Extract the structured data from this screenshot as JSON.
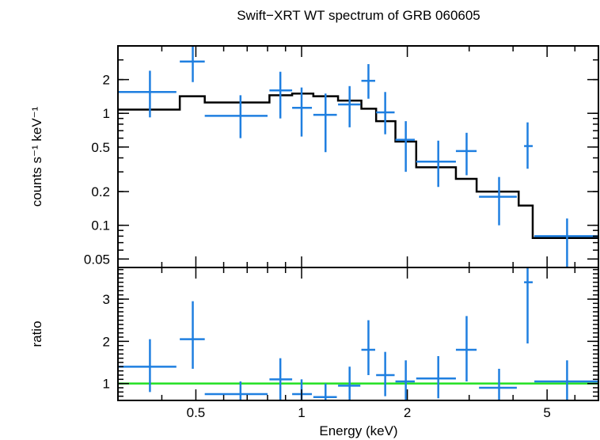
{
  "chart_data": [
    {
      "type": "scatter",
      "panel": "spectrum",
      "title": "Swift−XRT WT spectrum of GRB 060605",
      "xlabel": "",
      "ylabel": "counts s⁻¹ keV⁻¹",
      "xscale": "log",
      "yscale": "log",
      "xlim": [
        0.3,
        7.0
      ],
      "ylim": [
        0.042,
        4.0
      ],
      "y_ticks": [
        {
          "value": 0.05,
          "label": "0.05"
        },
        {
          "value": 0.1,
          "label": "0.1"
        },
        {
          "value": 0.2,
          "label": "0.2"
        },
        {
          "value": 0.5,
          "label": "0.5"
        },
        {
          "value": 1,
          "label": "1"
        },
        {
          "value": 2,
          "label": "2"
        }
      ],
      "data_color": "#1f7fe0",
      "model_color": "#000000",
      "data": [
        {
          "x": 0.37,
          "xlo": 0.3,
          "xhi": 0.44,
          "y": 1.55,
          "ylo": 0.92,
          "yhi": 2.4
        },
        {
          "x": 0.49,
          "xlo": 0.45,
          "xhi": 0.53,
          "y": 2.9,
          "ylo": 1.9,
          "yhi": 4.0
        },
        {
          "x": 0.67,
          "xlo": 0.53,
          "xhi": 0.8,
          "y": 0.95,
          "ylo": 0.6,
          "yhi": 1.45
        },
        {
          "x": 0.87,
          "xlo": 0.81,
          "xhi": 0.94,
          "y": 1.6,
          "ylo": 0.9,
          "yhi": 2.35
        },
        {
          "x": 1.0,
          "xlo": 0.94,
          "xhi": 1.07,
          "y": 1.12,
          "ylo": 0.62,
          "yhi": 1.7
        },
        {
          "x": 1.17,
          "xlo": 1.08,
          "xhi": 1.26,
          "y": 0.97,
          "ylo": 0.45,
          "yhi": 1.5
        },
        {
          "x": 1.37,
          "xlo": 1.27,
          "xhi": 1.47,
          "y": 1.2,
          "ylo": 0.75,
          "yhi": 1.75
        },
        {
          "x": 1.55,
          "xlo": 1.48,
          "xhi": 1.62,
          "y": 1.95,
          "ylo": 1.35,
          "yhi": 2.75
        },
        {
          "x": 1.73,
          "xlo": 1.63,
          "xhi": 1.84,
          "y": 1.02,
          "ylo": 0.65,
          "yhi": 1.55
        },
        {
          "x": 1.98,
          "xlo": 1.85,
          "xhi": 2.1,
          "y": 0.58,
          "ylo": 0.3,
          "yhi": 0.85
        },
        {
          "x": 2.45,
          "xlo": 2.12,
          "xhi": 2.75,
          "y": 0.37,
          "ylo": 0.22,
          "yhi": 0.57
        },
        {
          "x": 2.95,
          "xlo": 2.75,
          "xhi": 3.15,
          "y": 0.46,
          "ylo": 0.28,
          "yhi": 0.67
        },
        {
          "x": 3.65,
          "xlo": 3.2,
          "xhi": 4.1,
          "y": 0.18,
          "ylo": 0.1,
          "yhi": 0.27
        },
        {
          "x": 4.4,
          "xlo": 4.3,
          "xhi": 4.55,
          "y": 0.51,
          "ylo": 0.32,
          "yhi": 0.83
        },
        {
          "x": 5.7,
          "xlo": 4.6,
          "xhi": 7.0,
          "y": 0.08,
          "ylo": 0.042,
          "yhi": 0.115
        }
      ],
      "model_steps": [
        {
          "xlo": 0.3,
          "xhi": 0.45,
          "y": 1.08
        },
        {
          "xlo": 0.45,
          "xhi": 0.53,
          "y": 1.42
        },
        {
          "xlo": 0.53,
          "xhi": 0.81,
          "y": 1.25
        },
        {
          "xlo": 0.81,
          "xhi": 0.94,
          "y": 1.45
        },
        {
          "xlo": 0.94,
          "xhi": 1.08,
          "y": 1.5
        },
        {
          "xlo": 1.08,
          "xhi": 1.27,
          "y": 1.42
        },
        {
          "xlo": 1.27,
          "xhi": 1.48,
          "y": 1.3
        },
        {
          "xlo": 1.48,
          "xhi": 1.63,
          "y": 1.1
        },
        {
          "xlo": 1.63,
          "xhi": 1.85,
          "y": 0.85
        },
        {
          "xlo": 1.85,
          "xhi": 2.12,
          "y": 0.56
        },
        {
          "xlo": 2.12,
          "xhi": 2.75,
          "y": 0.33
        },
        {
          "xlo": 2.75,
          "xhi": 3.15,
          "y": 0.26
        },
        {
          "xlo": 3.15,
          "xhi": 4.15,
          "y": 0.2
        },
        {
          "xlo": 4.15,
          "xhi": 4.55,
          "y": 0.15
        },
        {
          "xlo": 4.55,
          "xhi": 7.0,
          "y": 0.077
        }
      ]
    },
    {
      "type": "scatter",
      "panel": "ratio",
      "xlabel": "Energy (keV)",
      "ylabel": "ratio",
      "xscale": "log",
      "yscale": "linear",
      "xlim": [
        0.3,
        7.0
      ],
      "ylim": [
        0.6,
        3.75
      ],
      "x_ticks": [
        {
          "value": 0.5,
          "label": "0.5"
        },
        {
          "value": 1,
          "label": "1"
        },
        {
          "value": 2,
          "label": "2"
        },
        {
          "value": 5,
          "label": "5"
        }
      ],
      "y_ticks": [
        {
          "value": 1,
          "label": "1"
        },
        {
          "value": 2,
          "label": "2"
        },
        {
          "value": 3,
          "label": "3"
        }
      ],
      "reference_line": {
        "y": 1,
        "color": "#22e022"
      },
      "data_color": "#1f7fe0",
      "data": [
        {
          "x": 0.37,
          "xlo": 0.3,
          "xhi": 0.44,
          "y": 1.4,
          "ylo": 0.8,
          "yhi": 2.05
        },
        {
          "x": 0.49,
          "xlo": 0.45,
          "xhi": 0.53,
          "y": 2.05,
          "ylo": 1.35,
          "yhi": 2.95
        },
        {
          "x": 0.67,
          "xlo": 0.53,
          "xhi": 0.8,
          "y": 0.75,
          "ylo": 0.6,
          "yhi": 1.05
        },
        {
          "x": 0.87,
          "xlo": 0.81,
          "xhi": 0.94,
          "y": 1.1,
          "ylo": 0.6,
          "yhi": 1.6
        },
        {
          "x": 1.0,
          "xlo": 0.94,
          "xhi": 1.07,
          "y": 0.75,
          "ylo": 0.6,
          "yhi": 1.1
        },
        {
          "x": 1.17,
          "xlo": 1.08,
          "xhi": 1.26,
          "y": 0.68,
          "ylo": 0.6,
          "yhi": 1.0
        },
        {
          "x": 1.37,
          "xlo": 1.27,
          "xhi": 1.47,
          "y": 0.95,
          "ylo": 0.6,
          "yhi": 1.4
        },
        {
          "x": 1.55,
          "xlo": 1.48,
          "xhi": 1.62,
          "y": 1.8,
          "ylo": 1.2,
          "yhi": 2.5
        },
        {
          "x": 1.73,
          "xlo": 1.63,
          "xhi": 1.84,
          "y": 1.2,
          "ylo": 0.7,
          "yhi": 1.75
        },
        {
          "x": 1.98,
          "xlo": 1.85,
          "xhi": 2.1,
          "y": 1.05,
          "ylo": 0.6,
          "yhi": 1.55
        },
        {
          "x": 2.45,
          "xlo": 2.12,
          "xhi": 2.75,
          "y": 1.12,
          "ylo": 0.65,
          "yhi": 1.65
        },
        {
          "x": 2.95,
          "xlo": 2.75,
          "xhi": 3.15,
          "y": 1.8,
          "ylo": 1.05,
          "yhi": 2.6
        },
        {
          "x": 3.65,
          "xlo": 3.2,
          "xhi": 4.1,
          "y": 0.9,
          "ylo": 0.6,
          "yhi": 1.35
        },
        {
          "x": 4.4,
          "xlo": 4.3,
          "xhi": 4.55,
          "y": 3.4,
          "ylo": 1.95,
          "yhi": 3.75
        },
        {
          "x": 5.7,
          "xlo": 4.6,
          "xhi": 7.0,
          "y": 1.05,
          "ylo": 0.6,
          "yhi": 1.55
        }
      ]
    }
  ]
}
